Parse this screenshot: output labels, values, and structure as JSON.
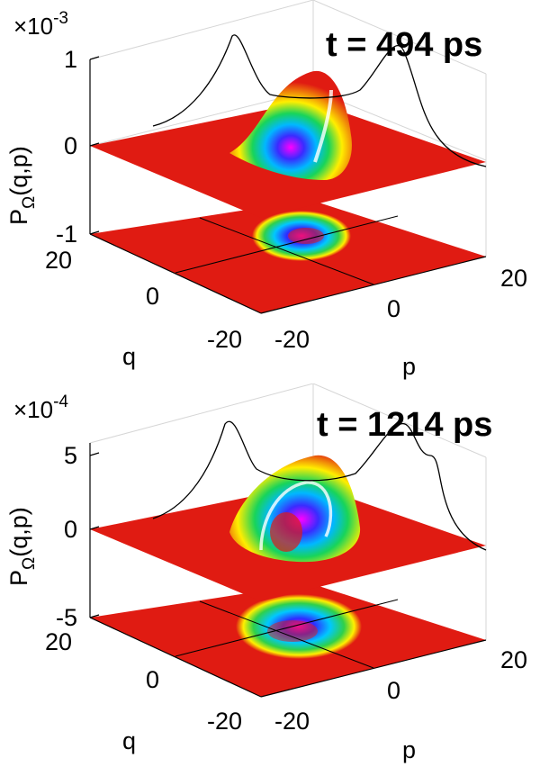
{
  "figure": {
    "ylabel": "P",
    "ylabel_sub": "Ω",
    "ylabel_args": "(q,p)",
    "xlabel": "q",
    "zlabel": "p"
  },
  "chart_data": [
    {
      "type": "surface",
      "title": "t = 494 ps",
      "multiplier_base": "×10",
      "multiplier_exp": "-3",
      "zticks": [
        {
          "value": 1,
          "label": "1"
        },
        {
          "value": 0,
          "label": "0"
        },
        {
          "value": -1,
          "label": "-1"
        }
      ],
      "q_ticks": [
        "20",
        "0",
        "-20"
      ],
      "p_ticks": [
        "-20",
        "0",
        "20"
      ],
      "q_range": [
        -20,
        20
      ],
      "p_range": [
        -20,
        20
      ],
      "z_range": [
        -1,
        1
      ],
      "peak_value": 0.95,
      "grid": true
    },
    {
      "type": "surface",
      "title": "t = 1214 ps",
      "multiplier_base": "×10",
      "multiplier_exp": "-4",
      "zticks": [
        {
          "value": 5,
          "label": "5"
        },
        {
          "value": 0,
          "label": "0"
        },
        {
          "value": -5,
          "label": "-5"
        }
      ],
      "q_ticks": [
        "20",
        "0",
        "-20"
      ],
      "p_ticks": [
        "-20",
        "0",
        "20"
      ],
      "q_range": [
        -20,
        20
      ],
      "p_range": [
        -20,
        20
      ],
      "z_range": [
        -6,
        6
      ],
      "peak_value": 5.0,
      "grid": true
    }
  ],
  "colors": {
    "surface_base": "#e01b12",
    "axis": "#000000",
    "grid": "#d6d6d6",
    "projection_line": "#000000"
  }
}
